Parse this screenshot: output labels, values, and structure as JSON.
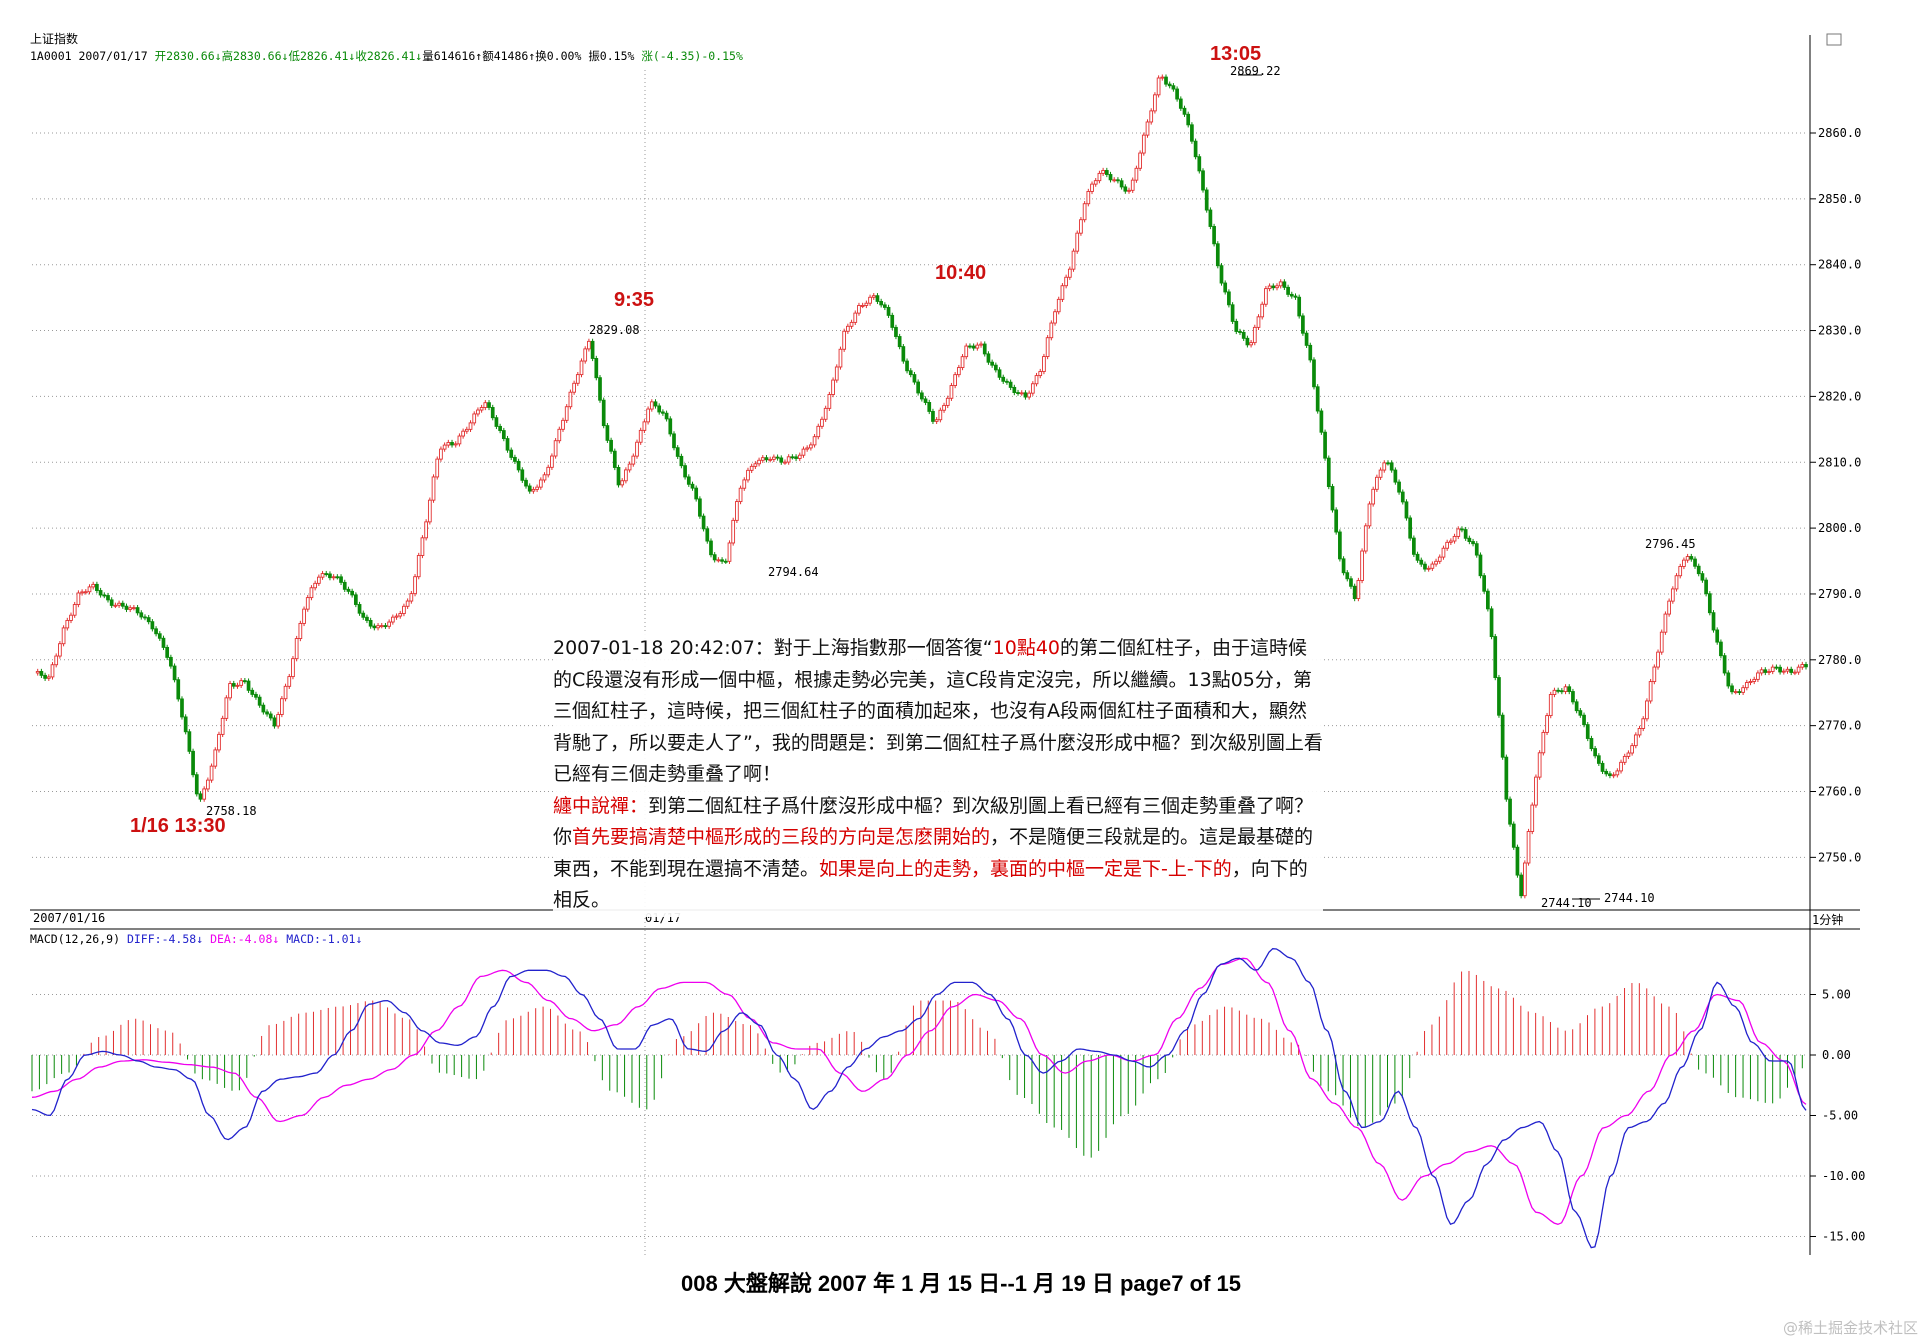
{
  "header": {
    "index_name": "上证指数",
    "code": "1A0001",
    "date": "2007/01/17",
    "open": "开2830.66↓",
    "high": "高2830.66↓",
    "low": "低2826.41↓",
    "close": "收2826.41↓",
    "volume": "量614616↑",
    "amount": "额41486↑",
    "turnover": "换0.00%",
    "amplitude": "振0.15%",
    "change": "涨(-4.35)-0.15%"
  },
  "period_label": "1分钟",
  "x_labels": [
    "2007/01/16",
    "01/17"
  ],
  "macd_header": {
    "name": "MACD(12,26,9)",
    "diff": "DIFF:-4.58↓",
    "dea": "DEA:-4.08↓",
    "macd": "MACD:-1.01↓"
  },
  "annotations": {
    "t1": "1/16 13:30",
    "t2": "9:35",
    "t3": "10:40",
    "t4": "13:05",
    "p_low1": "2758.18",
    "p_high1": "2829.08",
    "p_low2": "2794.64",
    "p_high2": "2869.22",
    "p_low3a": "2744.10",
    "p_low3b": "2744.10",
    "p_high3": "2796.45"
  },
  "commentary": {
    "p1_a": "2007-01-18 20:42:07：對于上海指數那一個答復“",
    "p1_red": "10點40",
    "p1_b": "的第二個紅柱子，由于這時候的C段還沒有形成一個中樞，根據走勢必完美，這C段肯定沒完，所以繼續。13點05分，第三個紅柱子，這時候，把三個紅柱子的面積加起來，也沒有A段兩個紅柱子面積和大，顯然背馳了，所以要走人了”，我的問題是：到第二個紅柱子爲什麼沒形成中樞？到次級別圖上看已經有三個走勢重叠了啊！",
    "p2_red1": "纏中說禪：",
    "p2_a": "到第二個紅柱子爲什麼沒形成中樞？到次級別圖上看已經有三個走勢重叠了啊？你",
    "p2_red2": "首先要搞清楚中樞形成的三段的方向是怎麽開始的",
    "p2_b": "，不是隨便三段就是的。這是最基礎的東西，不能到現在還搞不清楚。",
    "p2_red3": "如果是向上的走勢，裏面的中樞一定是下-上-下的",
    "p2_c": "，向下的相反。"
  },
  "caption": "008  大盤解說 2007 年 1 月 15 日--1 月 19 日    page7 of 15",
  "watermark": "@稀土掘金技术社区",
  "colors": {
    "up": "#e23030",
    "down": "#0a8a0a",
    "diff": "#2222cc",
    "dea": "#ee00ee",
    "grid": "#9a9a9a"
  },
  "chart_data": [
    {
      "type": "candlestick",
      "title": "上证指数",
      "period": "1分钟",
      "ylim": [
        2740,
        2872
      ],
      "yticks": [
        2750.0,
        2760.0,
        2770.0,
        2780.0,
        2790.0,
        2800.0,
        2810.0,
        2820.0,
        2830.0,
        2840.0,
        2850.0,
        2860.0
      ],
      "grid": true,
      "close_path": [
        2778,
        2777,
        2785,
        2790,
        2791,
        2789,
        2788,
        2787,
        2785,
        2780,
        2770,
        2758.18,
        2765,
        2776,
        2777,
        2773,
        2770,
        2778,
        2788,
        2793,
        2793,
        2790,
        2786,
        2785,
        2786,
        2789,
        2800,
        2812,
        2813,
        2816,
        2819,
        2815,
        2810,
        2805,
        2808,
        2815,
        2822,
        2829.08,
        2815,
        2806,
        2812,
        2819,
        2817,
        2810,
        2805,
        2796,
        2794.64,
        2806,
        2810,
        2811,
        2810,
        2811,
        2814,
        2820,
        2830,
        2834,
        2835,
        2832,
        2825,
        2820,
        2816,
        2821,
        2827,
        2828,
        2824,
        2821,
        2820,
        2824,
        2833,
        2840,
        2850,
        2854,
        2853,
        2851,
        2860,
        2869.22,
        2866,
        2860,
        2850,
        2838,
        2830,
        2828,
        2836,
        2837,
        2835,
        2825,
        2810,
        2795,
        2789,
        2805,
        2811,
        2805,
        2795,
        2794,
        2797,
        2800,
        2797,
        2785,
        2760,
        2744.1,
        2762,
        2775,
        2776,
        2771,
        2765,
        2762,
        2765,
        2770,
        2780,
        2790,
        2796.45,
        2793,
        2783,
        2775,
        2776,
        2778,
        2779,
        2778,
        2779
      ]
    },
    {
      "type": "macd",
      "title": "MACD(12,26,9)",
      "ylim": [
        -16,
        9
      ],
      "yticks": [
        5.0,
        0.0,
        -5.0,
        -10.0,
        -15.0
      ],
      "series": [
        {
          "name": "DIFF",
          "values": [
            -4.5,
            -5,
            -2,
            0,
            0.3,
            0,
            -0.5,
            -1,
            -1.2,
            -2,
            -5,
            -7,
            -6,
            -3,
            -2,
            -1.8,
            -1.5,
            0,
            2,
            4.2,
            4.5,
            3.5,
            2,
            1,
            0.8,
            1.5,
            4,
            6.5,
            7,
            7,
            6.5,
            5,
            3,
            0.5,
            0.5,
            2.5,
            3,
            0.5,
            0.3,
            2,
            3.5,
            2.5,
            0,
            -2,
            -4.5,
            -3,
            -1,
            0.5,
            1.5,
            2,
            3,
            5,
            6,
            6,
            5,
            3,
            0,
            -1.5,
            -0.5,
            0.5,
            0.3,
            0,
            -0.5,
            -1,
            0,
            2,
            5,
            7.5,
            8,
            7,
            8.8,
            8,
            6,
            2,
            -3,
            -6,
            -5.5,
            -3,
            -6,
            -10,
            -14,
            -12,
            -9,
            -7,
            -6,
            -5.5,
            -8,
            -13,
            -16,
            -10,
            -6,
            -5.5,
            -4,
            -1,
            2,
            6,
            4,
            1,
            -0.5,
            -0.5,
            -4.58
          ]
        },
        {
          "name": "DEA",
          "values": [
            -3.5,
            -3,
            -2,
            -1,
            -0.5,
            -0.4,
            -0.6,
            -0.8,
            -1,
            -1.5,
            -3.5,
            -5.5,
            -5,
            -3.5,
            -2.5,
            -2,
            -1.2,
            0,
            2,
            4,
            6.5,
            7,
            6,
            4.5,
            3,
            2,
            2.5,
            4,
            5.5,
            6,
            6,
            5,
            3,
            1,
            0.5,
            0.5,
            -1.5,
            -3,
            -2,
            0,
            2,
            4,
            5,
            4.5,
            3,
            0,
            -1.5,
            -0.5,
            0,
            -0.5,
            0,
            3,
            5.5,
            7.5,
            8,
            6,
            2,
            -2,
            -4,
            -6,
            -9,
            -12,
            -10,
            -9,
            -8,
            -7.5,
            -9,
            -13,
            -14,
            -10,
            -6,
            -5,
            -3,
            0,
            2,
            5,
            4.5,
            1,
            -0.5,
            -4.08
          ]
        },
        {
          "name": "MACD",
          "values": [
            -3,
            -1.5,
            1.5,
            3,
            2,
            -2,
            -3,
            2.5,
            3.5,
            4,
            4.5,
            3,
            -1.5,
            -2,
            3,
            4,
            2,
            -3,
            -4.5,
            1.5,
            3.5,
            2.5,
            -1.5,
            1,
            2,
            -2,
            4.5,
            4.5,
            2,
            -3.5,
            -6,
            -8.5,
            -5,
            -2,
            2.5,
            4,
            3,
            1,
            -3,
            -6,
            -4,
            2.5,
            7,
            5.5,
            3.5,
            2,
            4,
            6,
            4,
            -1.5,
            -3.5,
            -4,
            -1.01
          ]
        }
      ]
    }
  ]
}
